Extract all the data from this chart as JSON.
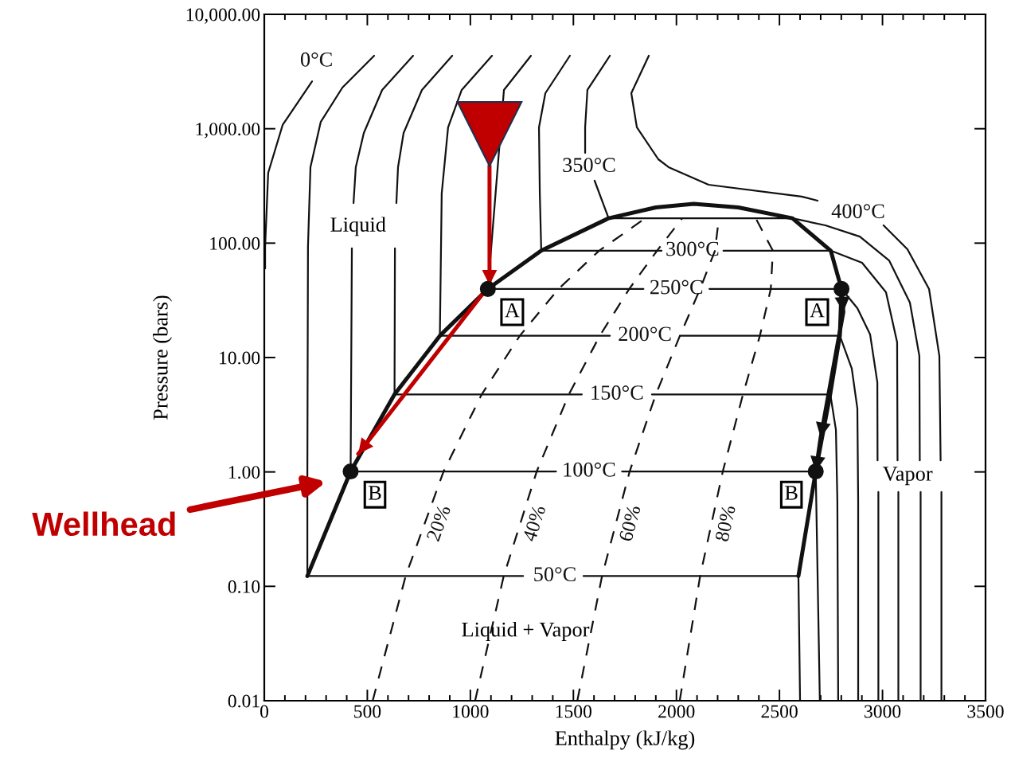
{
  "chart_data": {
    "type": "line",
    "xlabel": "Enthalpy (kJ/kg)",
    "ylabel": "Pressure (bars)",
    "xlim": [
      0,
      3500
    ],
    "xticks": [
      0,
      500,
      1000,
      1500,
      2000,
      2500,
      3000,
      3500
    ],
    "ylim": [
      0.01,
      10000
    ],
    "yticks": [
      0.01,
      {
        "value": 0.1,
        "label": "0.10"
      },
      {
        "value": 1,
        "label": "1.00"
      },
      {
        "value": 10,
        "label": "10.00"
      },
      {
        "value": 100,
        "label": "100.00"
      },
      {
        "value": 1000,
        "label": "1,000.00"
      },
      {
        "value": 10000,
        "label": "10,000.00"
      }
    ],
    "log": "y",
    "grid": false,
    "legend": false,
    "series": [
      {
        "type": "line",
        "color": "#111111",
        "x": [
          209,
          419,
          632,
          852,
          1085,
          1344,
          1671,
          1900,
          2084,
          2300,
          2563,
          2749,
          2801,
          2793,
          2746,
          2676,
          2592
        ],
        "values": [
          0.123,
          1.01,
          4.76,
          15.5,
          39.8,
          85.9,
          165,
          205,
          220.6,
          205,
          165,
          85.9,
          39.8,
          15.5,
          4.76,
          1.01,
          0.123
        ]
      },
      {
        "type": "line",
        "name": "0°C",
        "color": "#111111",
        "x": [
          232,
          89,
          19,
          4,
          4
        ],
        "values": [
          2600,
          1078,
          412,
          92.9,
          60
        ]
      },
      {
        "type": "line",
        "name": "50°C",
        "color": "#111111",
        "x": [
          533,
          379,
          274,
          224,
          212,
          209,
          209,
          1256,
          1410,
          1549,
          2592,
          2600
        ],
        "values": [
          4345,
          2290,
          1148,
          461,
          92.9,
          1,
          0.123,
          0.123,
          null,
          0.123,
          0.123,
          0.01
        ]
      },
      {
        "type": "line",
        "name": "100°C",
        "color": "#111111",
        "x": [
          2696,
          2676,
          1736,
          1576,
          1416,
          419,
          425,
          428,
          433,
          444,
          483,
          572,
          722
        ],
        "values": [
          0.01,
          1.01,
          1.01,
          null,
          1.01,
          1.01,
          90,
          null,
          224,
          461,
          918,
          2183,
          4345
        ]
      },
      {
        "type": "line",
        "name": "150°C",
        "color": "#111111",
        "x": [
          2785,
          2781,
          2774,
          2747,
          1881,
          1711,
          1541,
          632,
          634,
          636,
          641,
          649,
          676,
          765,
          912
        ],
        "values": [
          0.01,
          0.55,
          2.33,
          4.76,
          4.76,
          null,
          4.76,
          4.76,
          90,
          null,
          224,
          461,
          918,
          2183,
          4345
        ]
      },
      {
        "type": "line",
        "name": "200°C",
        "color": "#111111",
        "x": [
          1105,
          958,
          892,
          861,
          852,
          1677,
          1847,
          2017,
          2793,
          2851,
          2878,
          2882,
          2882
        ],
        "values": [
          4345,
          2183,
          1028,
          272,
          15.5,
          15.5,
          null,
          15.5,
          15.5,
          8.0,
          3.59,
          0.55,
          0.01
        ]
      },
      {
        "type": "line",
        "name": "250°C",
        "color": "#111111",
        "x": [
          1294,
          1163,
          1085,
          1840,
          2000,
          2160,
          2801,
          2878,
          2940,
          2975,
          2976,
          2978,
          2980,
          2980
        ],
        "values": [
          4345,
          2183,
          39.8,
          39.8,
          null,
          39.8,
          39.8,
          27.0,
          15.9,
          6.08,
          1.26,
          null,
          0.667,
          0.01
        ]
      },
      {
        "type": "line",
        "name": "300°C",
        "color": "#111111",
        "x": [
          1483,
          1364,
          1333,
          1337,
          1344,
          1928,
          2078,
          2228,
          2749,
          2901,
          3017,
          3071,
          3073,
          3075,
          3077,
          3077
        ],
        "values": [
          4345,
          2046,
          1028,
          272,
          85.9,
          85.9,
          null,
          85.9,
          85.9,
          67.3,
          37.2,
          13.6,
          1.26,
          null,
          0.667,
          0.01
        ]
      },
      {
        "type": "line",
        "name": "350°C",
        "color": "#111111",
        "x": [
          1677,
          1568,
          1557,
          1557,
          1576,
          1603,
          1671,
          2563,
          2723,
          2890,
          3032,
          3133,
          3179,
          3181,
          3183,
          3185,
          3185
        ],
        "values": [
          4345,
          2183,
          1028,
          615,
          null,
          351,
          165,
          165,
          143,
          114,
          70.6,
          30.2,
          10.3,
          1.26,
          null,
          0.667,
          0.01
        ]
      },
      {
        "type": "line",
        "name": "400°C",
        "color": "#111111",
        "x": [
          1866,
          1781,
          1808,
          1912,
          1962,
          2156,
          2608,
          2685,
          2882,
          3005,
          3121,
          3226,
          3276,
          3282,
          3284,
          3286,
          3286
        ],
        "values": [
          4345,
          2046,
          1028,
          541,
          461,
          324,
          255,
          235,
          null,
          143,
          88.5,
          39.7,
          10.3,
          1.26,
          null,
          0.667,
          0.01
        ]
      },
      {
        "type": "line",
        "name": "20%",
        "line_style": "dashed",
        "color": "#111111",
        "x": [
          526,
          686,
          870,
          1055,
          1240,
          1428,
          1625,
          1849
        ],
        "values": [
          0.01,
          0.123,
          1.01,
          4.76,
          15.5,
          39.8,
          85.9,
          165
        ]
      },
      {
        "type": "line",
        "name": "40%",
        "line_style": "dashed",
        "color": "#111111",
        "x": [
          1023,
          1162,
          1322,
          1478,
          1628,
          1771,
          1906,
          2028
        ],
        "values": [
          0.01,
          0.123,
          1.01,
          4.76,
          15.5,
          39.8,
          85.9,
          165
        ]
      },
      {
        "type": "line",
        "name": "60%",
        "line_style": "dashed",
        "color": "#111111",
        "x": [
          1519,
          1639,
          1773,
          1900,
          2017,
          2115,
          2187,
          2206
        ],
        "values": [
          0.01,
          0.123,
          1.01,
          4.76,
          15.5,
          39.8,
          85.9,
          165
        ]
      },
      {
        "type": "line",
        "name": "80%",
        "line_style": "dashed",
        "color": "#111111",
        "x": [
          2016,
          2115,
          2225,
          2323,
          2405,
          2458,
          2468,
          2385
        ],
        "values": [
          0.01,
          0.123,
          1.01,
          4.76,
          15.5,
          39.8,
          85.9,
          165
        ]
      },
      {
        "type": "line",
        "marker": "none",
        "color": "#111111",
        "x": [
          2801,
          2810,
          2700,
          2676
        ],
        "values": [
          39.8,
          25,
          2,
          1.01
        ]
      },
      {
        "type": "line",
        "marker": "none",
        "color": "#c00000",
        "x": [
          1093,
          1093,
          456
        ],
        "values": [
          476,
          43,
          1.44
        ]
      },
      {
        "type": "scatter",
        "marker": "circle",
        "color": "#111111",
        "x": [
          1085,
          2801,
          419,
          2676
        ],
        "values": [
          39.8,
          39.8,
          1.01,
          1.01
        ]
      },
      {
        "type": "scatter",
        "marker": "triangle",
        "color": "#c00000",
        "x": [
          1093
        ],
        "values": [
          900
        ]
      }
    ],
    "annotations": [
      "Liquid",
      "Vapor",
      "Liquid + Vapor",
      "Wellhead",
      {
        "text": "A",
        "x": 1085,
        "y": 39.8
      },
      {
        "text": "A",
        "x": 2801,
        "y": 39.8
      },
      {
        "text": "B",
        "x": 419,
        "y": 1.01
      },
      {
        "text": "B",
        "x": 2676,
        "y": 1.01
      }
    ]
  }
}
